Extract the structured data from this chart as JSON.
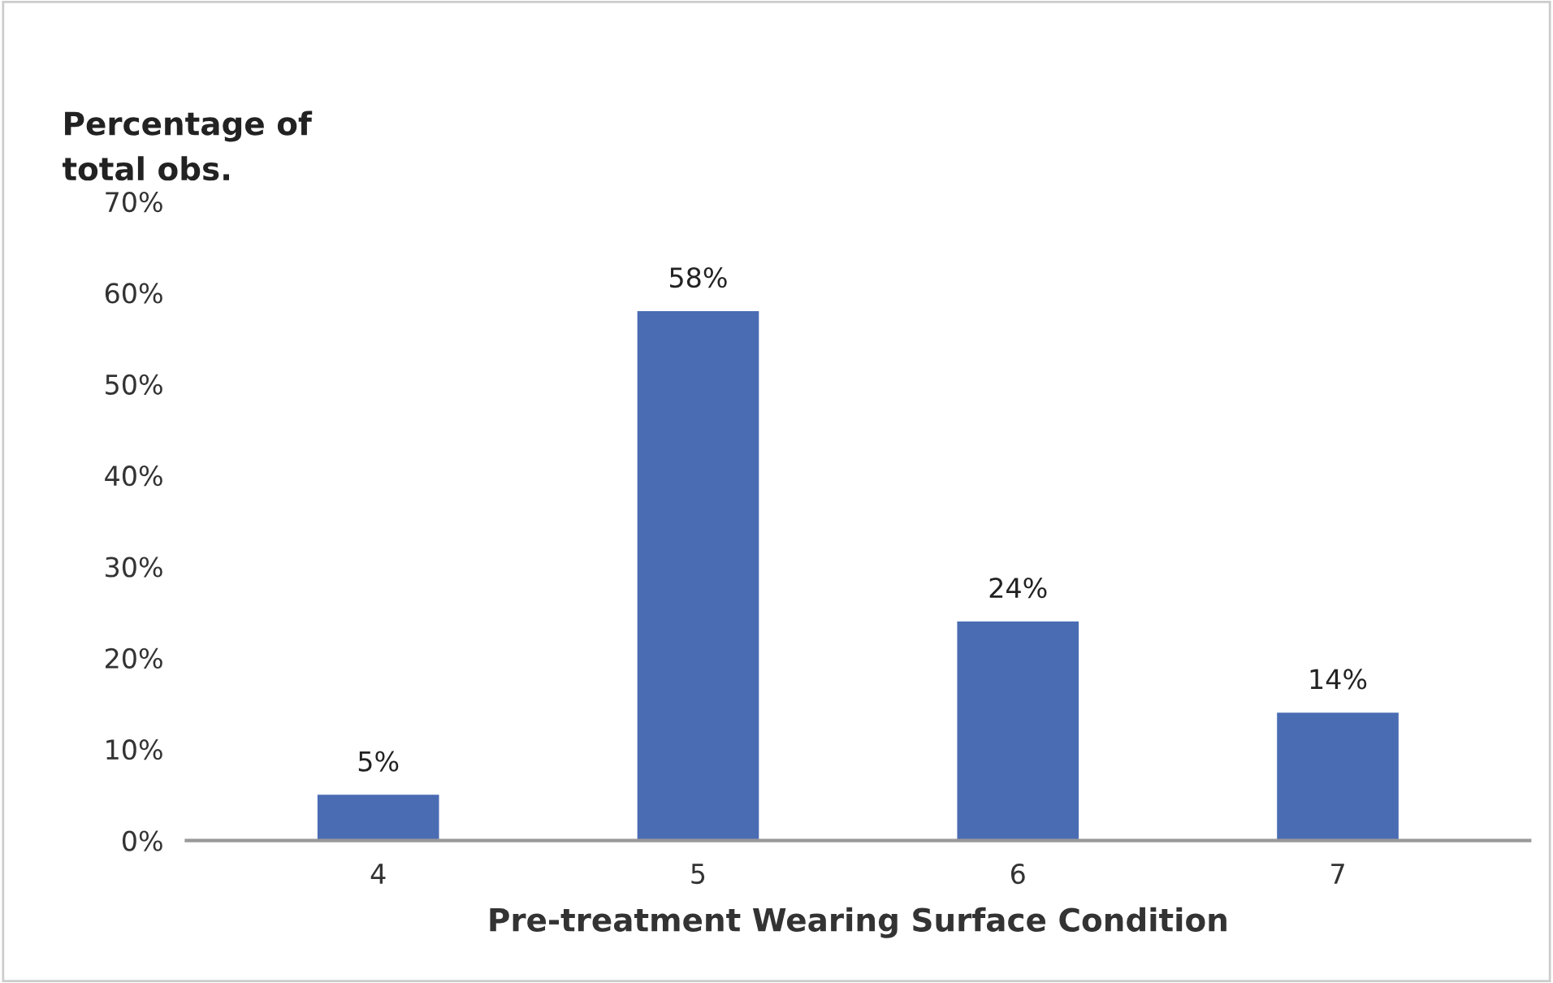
{
  "chart_data": {
    "type": "bar",
    "ylabel": "Percentage of\ntotal obs.",
    "xlabel": "Pre-treatment Wearing Surface Condition",
    "categories": [
      "4",
      "5",
      "6",
      "7"
    ],
    "values": [
      5,
      58,
      24,
      14
    ],
    "color": "#4a6cb3",
    "value_labels": [
      "5%",
      "58%",
      "24%",
      "14%"
    ],
    "ylim": [
      0,
      70
    ],
    "yticks": [
      {
        "value": 0,
        "label": "0%"
      },
      {
        "value": 10,
        "label": "10%"
      },
      {
        "value": 20,
        "label": "20%"
      },
      {
        "value": 30,
        "label": "30%"
      },
      {
        "value": 40,
        "label": "40%"
      },
      {
        "value": 50,
        "label": "50%"
      },
      {
        "value": 60,
        "label": "60%"
      },
      {
        "value": 70,
        "label": "70%"
      }
    ],
    "grid": false,
    "legend": false
  }
}
